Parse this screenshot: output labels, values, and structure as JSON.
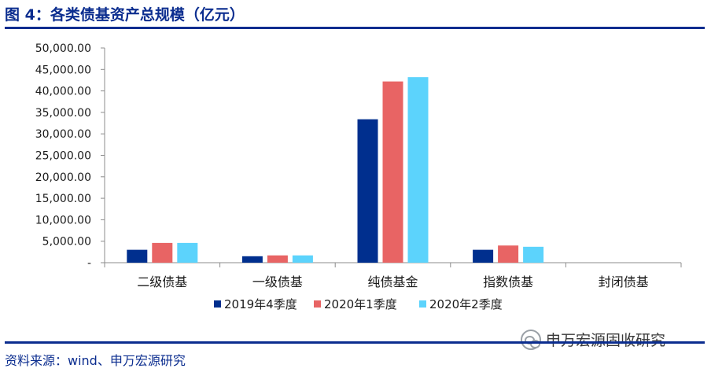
{
  "figure": {
    "title": "图 4：各类债基资产总规模（亿元）",
    "source": "资料来源：wind、申万宏源研究",
    "watermark": "申万宏源固收研究",
    "watermark_icon": "wechat-icon"
  },
  "chart_data": {
    "type": "bar",
    "title": "",
    "xlabel": "",
    "ylabel": "",
    "categories": [
      "二级债基",
      "一级债基",
      "纯债基金",
      "指数债基",
      "封闭债基"
    ],
    "series": [
      {
        "name": "2019年4季度",
        "color": "#002f8e",
        "values": [
          3000,
          1500,
          33400,
          3000,
          0
        ]
      },
      {
        "name": "2020年1季度",
        "color": "#e86464",
        "values": [
          4600,
          1700,
          42200,
          4000,
          0
        ]
      },
      {
        "name": "2020年2季度",
        "color": "#5cd3fc",
        "values": [
          4600,
          1700,
          43200,
          3700,
          0
        ]
      }
    ],
    "ylim": [
      0,
      50000
    ],
    "yticks": [
      0,
      5000,
      10000,
      15000,
      20000,
      25000,
      30000,
      35000,
      40000,
      45000,
      50000
    ],
    "ytick_labels": [
      "-",
      "5,000.00",
      "10,000.00",
      "15,000.00",
      "20,000.00",
      "25,000.00",
      "30,000.00",
      "35,000.00",
      "40,000.00",
      "45,000.00",
      "50,000.00"
    ],
    "grid": false,
    "legend_position": "bottom"
  }
}
